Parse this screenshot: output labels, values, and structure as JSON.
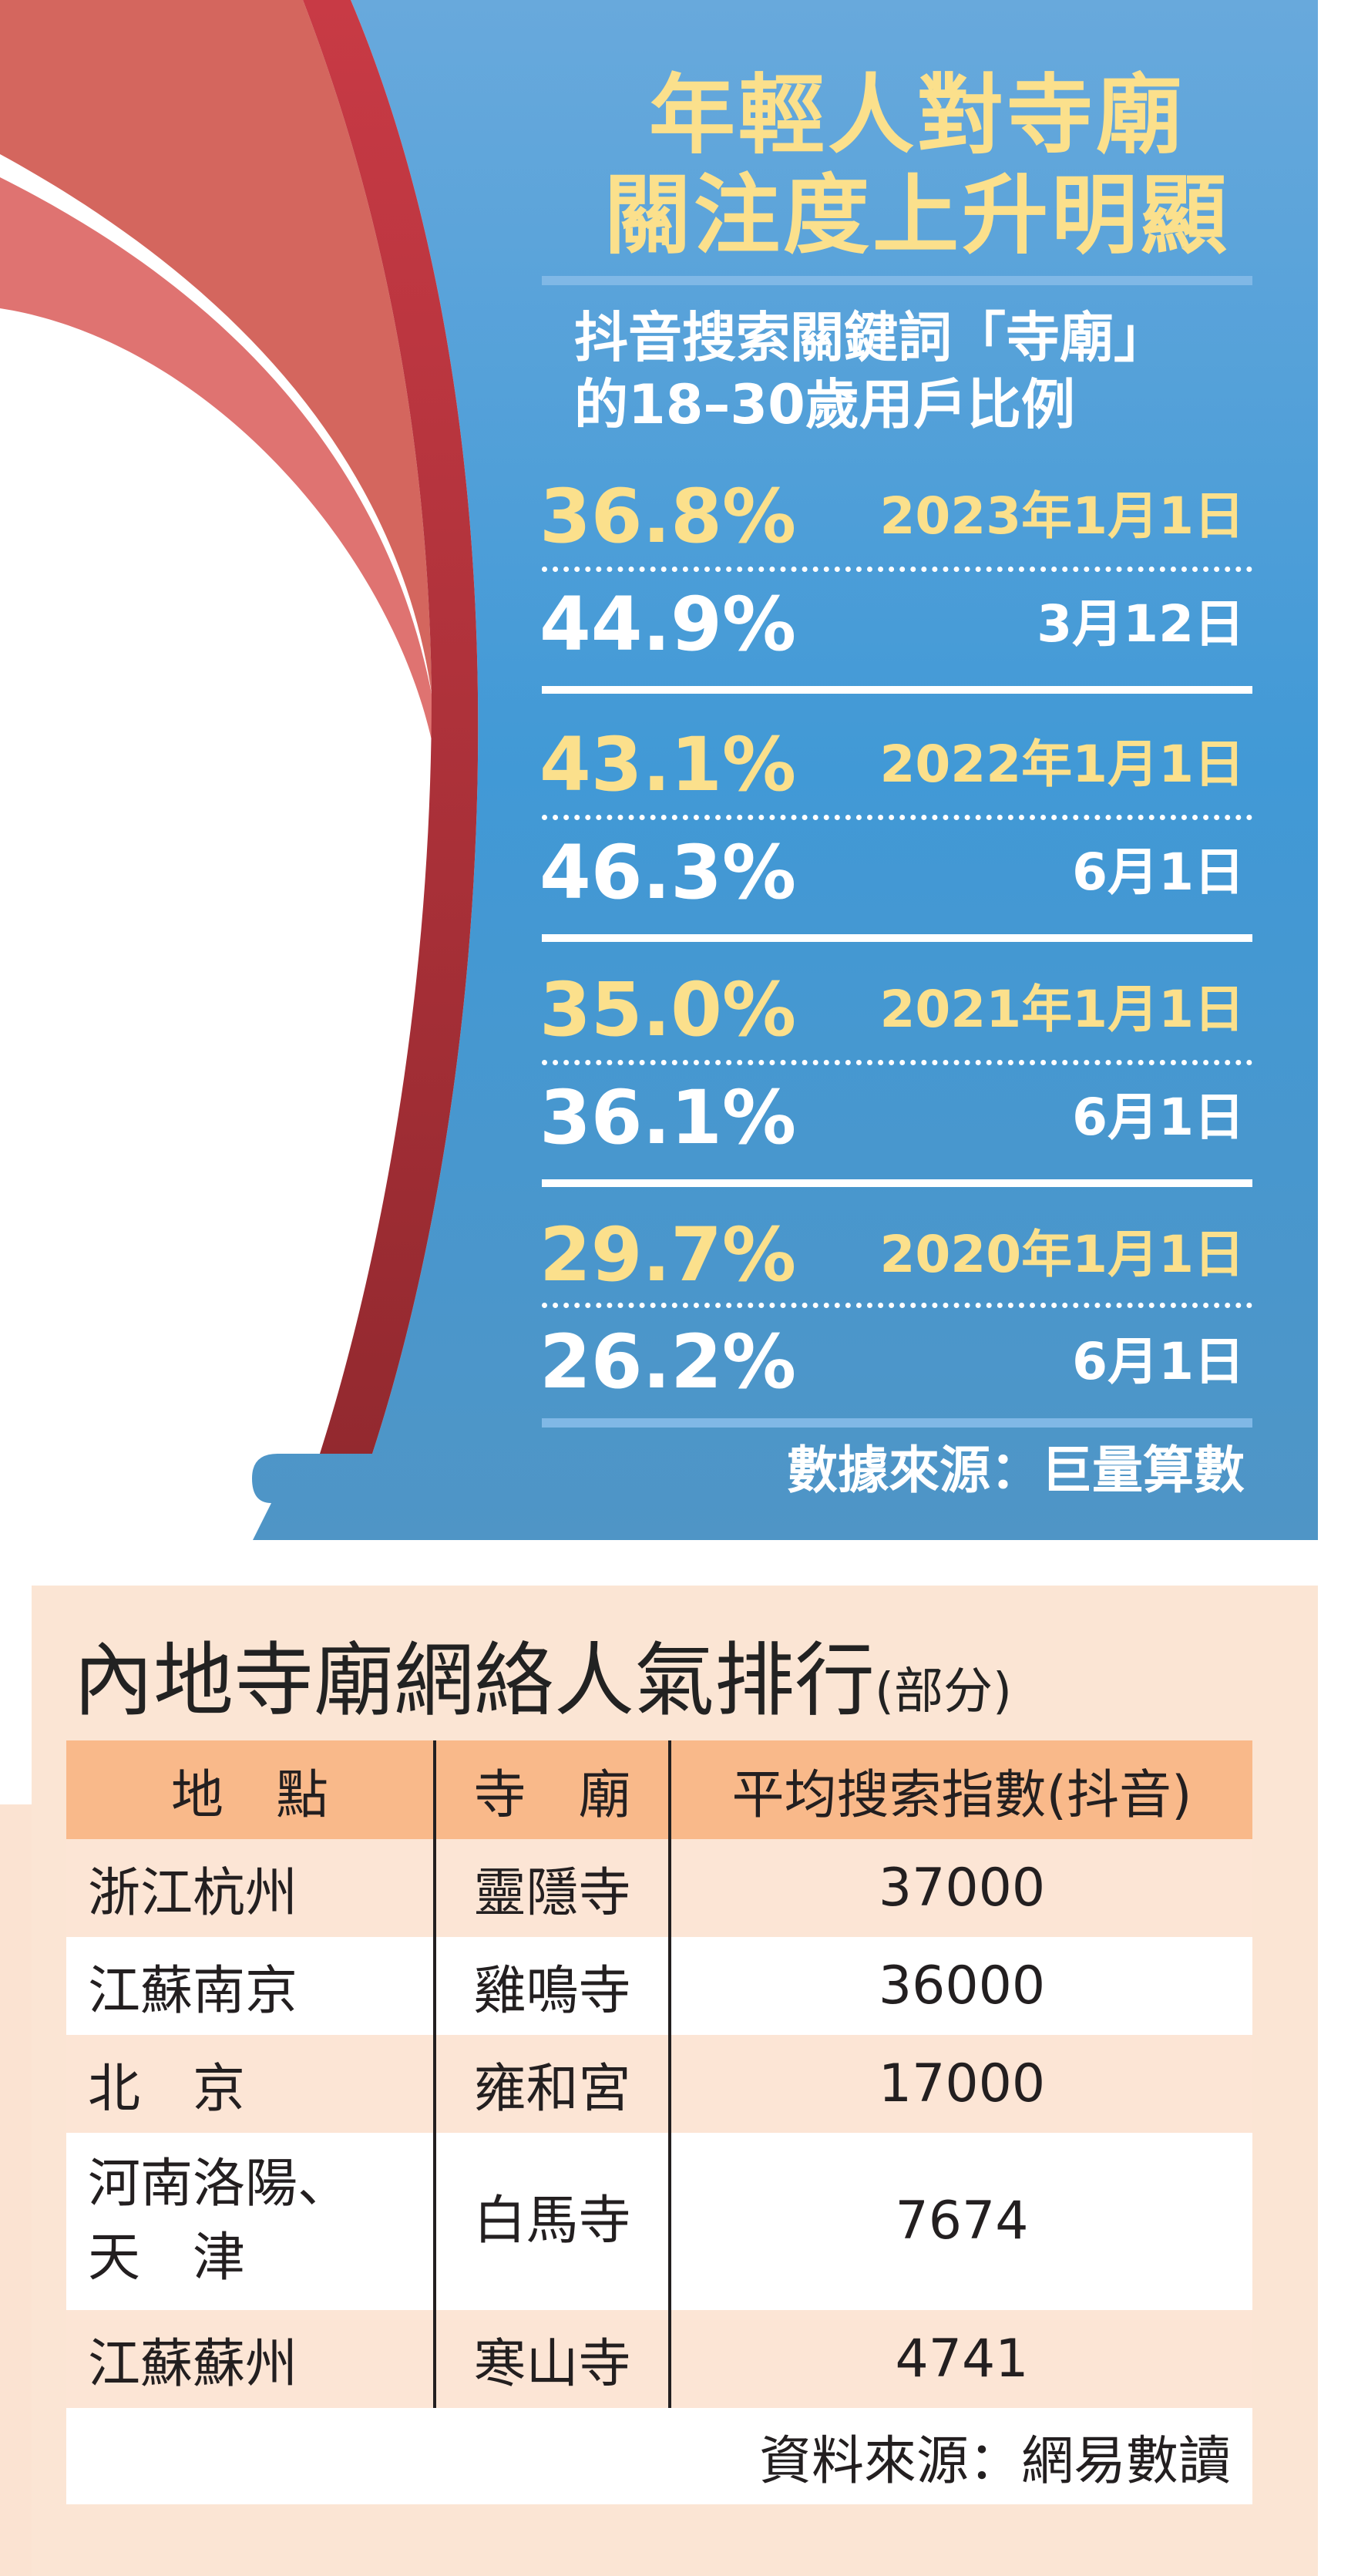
{
  "infographic": {
    "title_lines": [
      "年輕人對寺廟",
      "關注度上升明顯"
    ],
    "subtitle_lines": [
      "抖音搜索關鍵詞「寺廟」",
      "的18–30歲用戶比例"
    ],
    "groups": [
      {
        "first": {
          "percent": "36.8%",
          "date": "2023年1月1日"
        },
        "second": {
          "percent": "44.9%",
          "date": "3月12日"
        }
      },
      {
        "first": {
          "percent": "43.1%",
          "date": "2022年1月1日"
        },
        "second": {
          "percent": "46.3%",
          "date": "6月1日"
        }
      },
      {
        "first": {
          "percent": "35.0%",
          "date": "2021年1月1日"
        },
        "second": {
          "percent": "36.1%",
          "date": "6月1日"
        }
      },
      {
        "first": {
          "percent": "29.7%",
          "date": "2020年1月1日"
        },
        "second": {
          "percent": "26.2%",
          "date": "6月1日"
        }
      }
    ],
    "source": "數據來源：巨量算數",
    "colors": {
      "panel": "#4a9bd6",
      "highlight": "#fbe08c",
      "ribbon": "#c73a44"
    }
  },
  "ranking": {
    "title": "內地寺廟網絡人氣排行",
    "title_note": "(部分)",
    "headers": [
      "地　點",
      "寺　廟",
      "平均搜索指數(抖音)"
    ],
    "rows": [
      {
        "place": "浙江杭州",
        "temple": "靈隱寺",
        "index": "37000"
      },
      {
        "place": "江蘇南京",
        "temple": "雞鳴寺",
        "index": "36000"
      },
      {
        "place": "北　京",
        "temple": "雍和宮",
        "index": "17000"
      },
      {
        "place": "河南洛陽、",
        "place2": "天　津",
        "temple": "白馬寺",
        "index": "7674"
      },
      {
        "place": "江蘇蘇州",
        "temple": "寒山寺",
        "index": "4741"
      }
    ],
    "source": "資料來源：網易數讀",
    "colors": {
      "header": "#f9b98a",
      "background": "#fbe5d4"
    }
  }
}
